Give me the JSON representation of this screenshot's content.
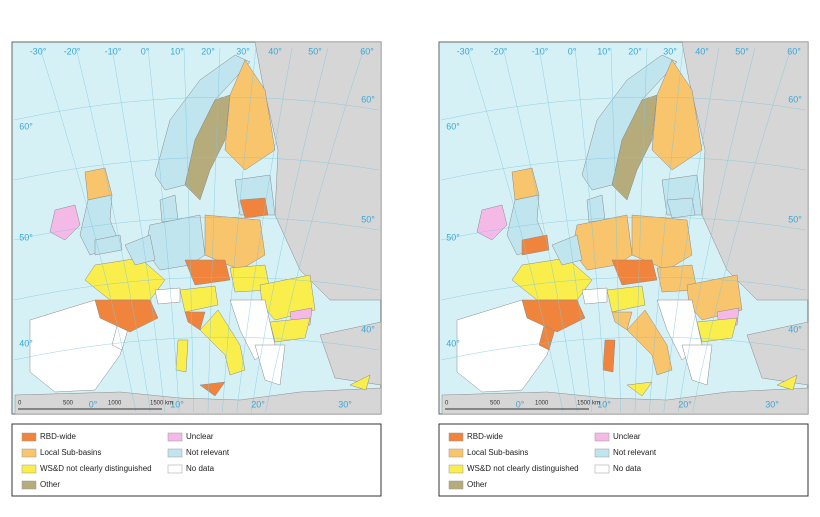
{
  "maps": [
    {
      "graticule": {
        "top": [
          "-30°",
          "-20°",
          "-10°",
          "0°",
          "10°",
          "20°",
          "30°",
          "40°",
          "50°",
          "60°"
        ],
        "right": [
          "60°",
          "50°",
          "40°"
        ],
        "left": [
          "60°",
          "50°",
          "40°"
        ],
        "bottom": [
          "0°",
          "10°",
          "20°",
          "30°"
        ]
      },
      "scale": [
        "0",
        "500",
        "1000",
        "1500 km"
      ]
    },
    {
      "graticule": {
        "top": [
          "-30°",
          "-20°",
          "-10°",
          "0°",
          "10°",
          "20°",
          "30°",
          "40°",
          "50°",
          "60°"
        ],
        "right": [
          "60°",
          "50°",
          "40°"
        ],
        "left": [
          "60°",
          "50°",
          "40°"
        ],
        "bottom": [
          "0°",
          "10°",
          "20°",
          "30°"
        ]
      },
      "scale": [
        "0",
        "500",
        "1000",
        "1500 km"
      ]
    }
  ],
  "legend": [
    {
      "label": "RBD-wide",
      "color": "#f0843c"
    },
    {
      "label": "Local Sub-basins",
      "color": "#f8c46c"
    },
    {
      "label": "WS&D not clearly distinguished",
      "color": "#faee4c"
    },
    {
      "label": "Other",
      "color": "#b5ab7b"
    },
    {
      "label": "Unclear",
      "color": "#f5b9e8"
    },
    {
      "label": "Not relevant",
      "color": "#c0e5ef"
    },
    {
      "label": "No data",
      "color": "#ffffff"
    }
  ]
}
